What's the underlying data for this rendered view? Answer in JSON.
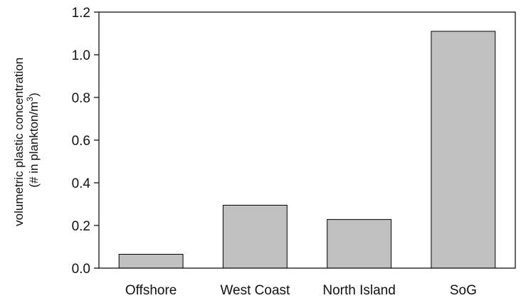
{
  "chart_data": {
    "type": "bar",
    "categories": [
      "Offshore",
      "West Coast",
      "North Island",
      "SoG"
    ],
    "values": [
      0.065,
      0.295,
      0.228,
      1.11
    ],
    "ylabel_line1": "volumetric plastic concentration",
    "ylabel_line2_prefix": "(# in plankton/m",
    "ylabel_line2_superscript": "3",
    "ylabel_line2_suffix": ")",
    "ylim": [
      0,
      1.2
    ],
    "yticks": [
      "0.0",
      "0.2",
      "0.4",
      "0.6",
      "0.8",
      "1.0",
      "1.2"
    ],
    "grid": false,
    "colors": {
      "bar_fill": "#c0c0c0",
      "bar_stroke": "#000000",
      "axis": "#000000"
    }
  }
}
